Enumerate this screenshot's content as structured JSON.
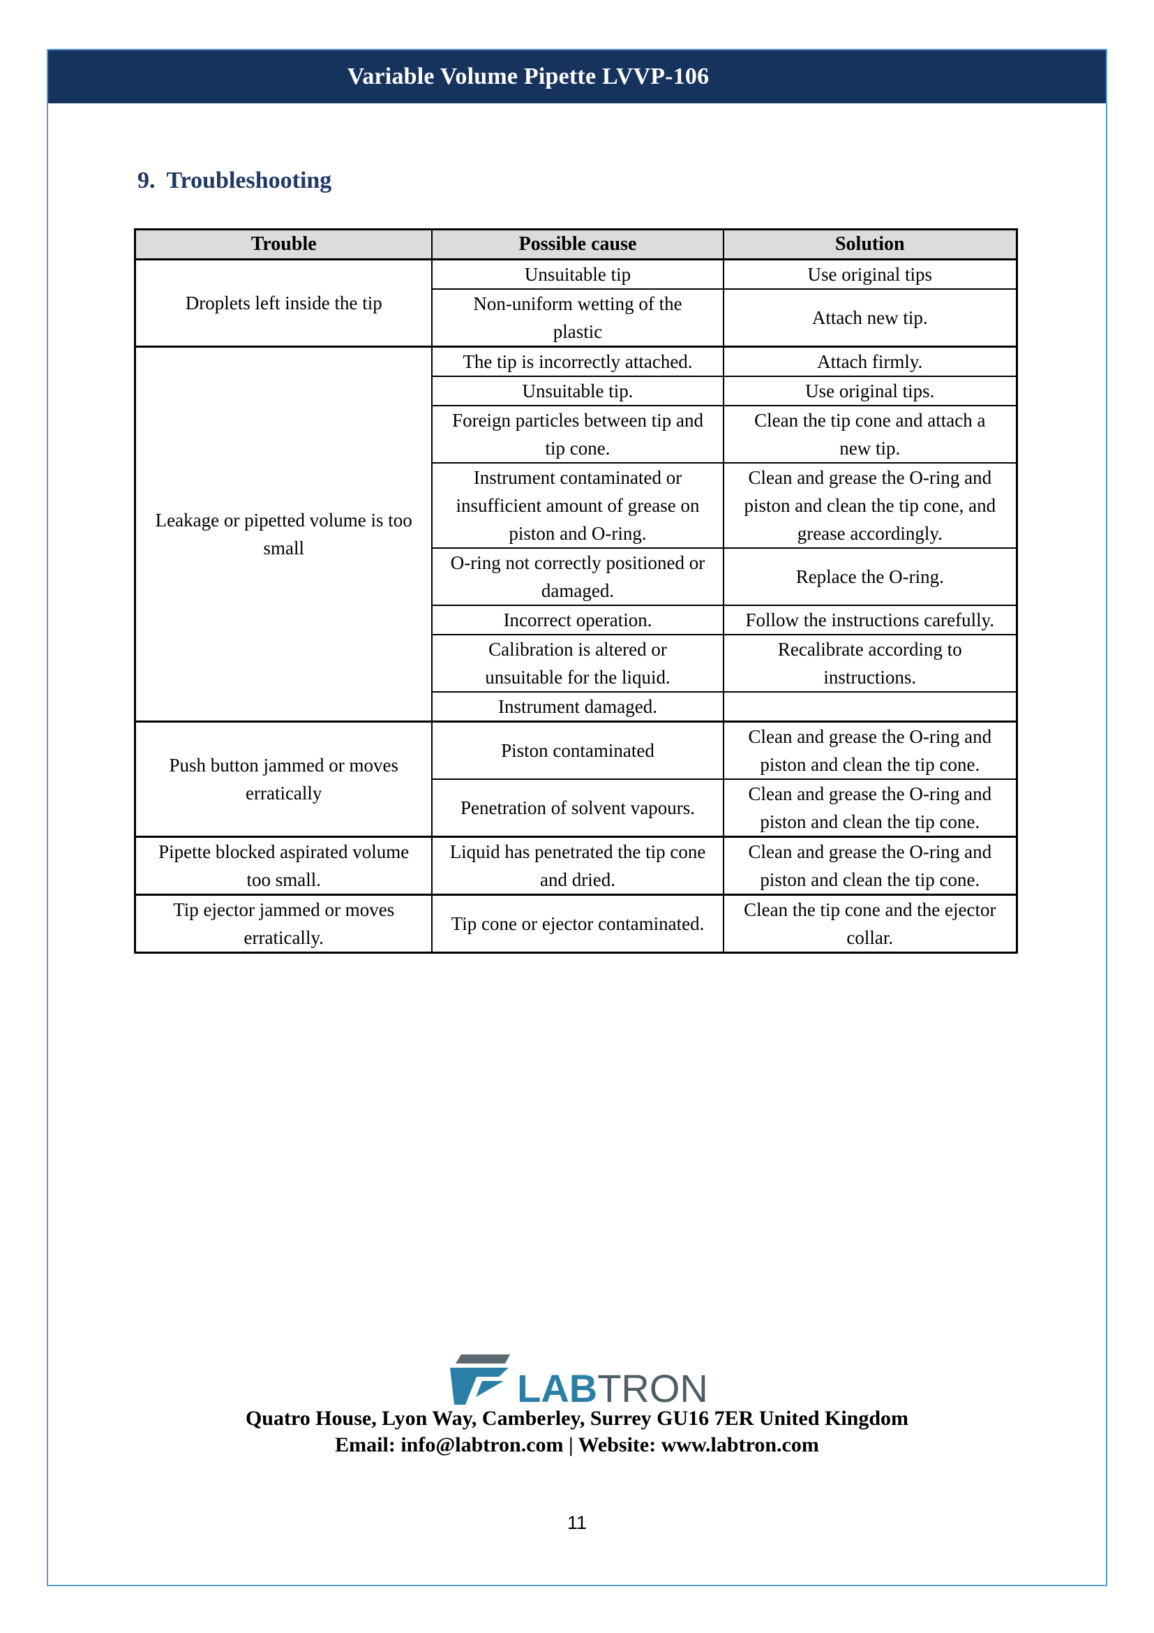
{
  "page": {
    "header_title": "Variable Volume Pipette LVVP-106",
    "section_number": "9.",
    "section_title": "Troubleshooting",
    "page_number": "11"
  },
  "table": {
    "headers": [
      "Trouble",
      "Possible cause",
      "Solution"
    ],
    "groups": [
      {
        "trouble": "Droplets left inside the tip",
        "rows": [
          {
            "cause": "Unsuitable tip",
            "solution": "Use original tips"
          },
          {
            "cause": "Non-uniform wetting of the plastic",
            "solution": "Attach new tip."
          }
        ]
      },
      {
        "trouble": "Leakage or pipetted volume is too small",
        "rows": [
          {
            "cause": "The tip is incorrectly attached.",
            "solution": "Attach firmly."
          },
          {
            "cause": "Unsuitable tip.",
            "solution": "Use original tips."
          },
          {
            "cause": "Foreign particles between tip and tip cone.",
            "solution": "Clean the tip cone and attach a new tip."
          },
          {
            "cause": "Instrument contaminated or insufficient amount of grease on piston and O-ring.",
            "solution": "Clean and grease the O-ring and piston and clean the tip cone, and grease accordingly."
          },
          {
            "cause": "O-ring not correctly positioned or damaged.",
            "solution": "Replace the O-ring."
          },
          {
            "cause": "Incorrect operation.",
            "solution": "Follow the instructions carefully."
          },
          {
            "cause": "Calibration is altered or unsuitable for the liquid.",
            "solution": "Recalibrate according to instructions."
          },
          {
            "cause": "Instrument damaged.",
            "solution": ""
          }
        ]
      },
      {
        "trouble": "Push button jammed or moves erratically",
        "rows": [
          {
            "cause": "Piston contaminated",
            "solution": "Clean and grease the O-ring and piston and clean the tip cone."
          },
          {
            "cause": "Penetration of solvent vapours.",
            "solution": "Clean and grease the O-ring and piston and clean the tip cone."
          }
        ]
      },
      {
        "trouble": "Pipette blocked aspirated volume too small.",
        "rows": [
          {
            "cause": "Liquid has penetrated the tip cone and dried.",
            "solution": "Clean and grease the O-ring and piston and clean the tip cone."
          }
        ]
      },
      {
        "trouble": "Tip ejector jammed or moves erratically.",
        "rows": [
          {
            "cause": "Tip cone or ejector contaminated.",
            "solution": "Clean the tip cone and the ejector collar."
          }
        ]
      }
    ]
  },
  "footer": {
    "logo_lab": "LAB",
    "logo_tron": "TRON",
    "address": "Quatro House, Lyon Way, Camberley, Surrey GU16 7ER United Kingdom",
    "contact": "Email: info@labtron.com | Website: www.labtron.com"
  },
  "colors": {
    "header_bar": "#16335E",
    "section_heading": "#1F3864",
    "frame_border": "#5B9BD5",
    "table_header_bg": "#DCDCDC",
    "logo_teal": "#2B7FA6",
    "logo_gray": "#4F5E64"
  }
}
